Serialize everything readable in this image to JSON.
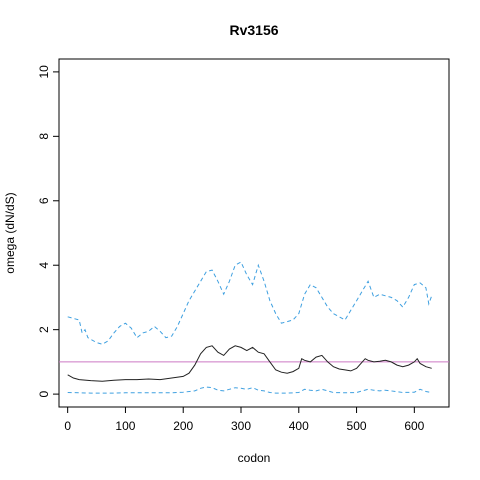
{
  "chart_data": {
    "type": "line",
    "title": "Rv3156",
    "xlabel": "codon",
    "ylabel": "omega (dN/dS)",
    "xlim": [
      -15,
      660
    ],
    "ylim": [
      -0.4,
      10.4
    ],
    "xticks": [
      0,
      100,
      200,
      300,
      400,
      500,
      600
    ],
    "yticks": [
      0,
      2,
      4,
      6,
      8,
      10
    ],
    "grid": false,
    "legend": "none",
    "reference_line": {
      "y": 1,
      "color": "#cc79c4"
    },
    "series": [
      {
        "role": "estimate",
        "style": "solid",
        "color": "#222222",
        "x": [
          0,
          10,
          20,
          40,
          60,
          80,
          100,
          120,
          140,
          160,
          180,
          200,
          210,
          220,
          230,
          240,
          250,
          260,
          270,
          280,
          290,
          300,
          310,
          320,
          330,
          340,
          350,
          360,
          370,
          380,
          390,
          400,
          405,
          410,
          420,
          430,
          440,
          450,
          460,
          470,
          480,
          490,
          500,
          510,
          515,
          520,
          530,
          540,
          550,
          560,
          570,
          580,
          590,
          600,
          605,
          610,
          620,
          630
        ],
        "y": [
          0.6,
          0.5,
          0.45,
          0.42,
          0.4,
          0.43,
          0.45,
          0.45,
          0.47,
          0.45,
          0.5,
          0.55,
          0.65,
          0.9,
          1.25,
          1.45,
          1.5,
          1.3,
          1.2,
          1.4,
          1.5,
          1.45,
          1.35,
          1.45,
          1.3,
          1.25,
          1.0,
          0.75,
          0.68,
          0.65,
          0.7,
          0.8,
          1.1,
          1.05,
          1.0,
          1.15,
          1.2,
          1.0,
          0.85,
          0.78,
          0.75,
          0.72,
          0.8,
          1.0,
          1.1,
          1.05,
          1.0,
          1.02,
          1.05,
          1.0,
          0.9,
          0.85,
          0.9,
          1.0,
          1.1,
          0.95,
          0.85,
          0.8
        ]
      },
      {
        "role": "upper bound",
        "style": "dashed",
        "color": "#3fa0e0",
        "x": [
          0,
          10,
          20,
          25,
          30,
          35,
          40,
          50,
          60,
          70,
          80,
          90,
          100,
          110,
          120,
          130,
          140,
          150,
          160,
          170,
          180,
          190,
          200,
          210,
          220,
          230,
          240,
          250,
          260,
          270,
          280,
          290,
          300,
          310,
          320,
          330,
          340,
          350,
          360,
          370,
          380,
          390,
          400,
          410,
          420,
          430,
          440,
          450,
          460,
          470,
          480,
          490,
          500,
          510,
          520,
          530,
          540,
          550,
          560,
          570,
          580,
          590,
          600,
          610,
          620,
          625,
          630
        ],
        "y": [
          2.4,
          2.35,
          2.3,
          1.9,
          2.0,
          1.75,
          1.7,
          1.6,
          1.55,
          1.65,
          1.9,
          2.1,
          2.2,
          2.05,
          1.75,
          1.9,
          1.95,
          2.1,
          1.95,
          1.75,
          1.8,
          2.1,
          2.5,
          2.9,
          3.2,
          3.5,
          3.8,
          3.85,
          3.5,
          3.1,
          3.5,
          4.0,
          4.1,
          3.7,
          3.4,
          4.0,
          3.5,
          2.9,
          2.5,
          2.2,
          2.25,
          2.3,
          2.5,
          3.1,
          3.4,
          3.3,
          3.0,
          2.7,
          2.5,
          2.4,
          2.3,
          2.6,
          2.9,
          3.2,
          3.5,
          3.0,
          3.1,
          3.05,
          3.0,
          2.9,
          2.7,
          3.0,
          3.4,
          3.45,
          3.3,
          2.8,
          3.05
        ]
      },
      {
        "role": "lower bound",
        "style": "dashed",
        "color": "#3fa0e0",
        "x": [
          0,
          20,
          40,
          60,
          80,
          100,
          120,
          140,
          160,
          180,
          200,
          220,
          230,
          240,
          250,
          260,
          270,
          280,
          290,
          300,
          310,
          320,
          330,
          340,
          350,
          360,
          380,
          400,
          410,
          420,
          430,
          440,
          450,
          460,
          480,
          500,
          510,
          520,
          530,
          540,
          550,
          560,
          580,
          600,
          610,
          620,
          630
        ],
        "y": [
          0.05,
          0.04,
          0.03,
          0.03,
          0.03,
          0.04,
          0.04,
          0.04,
          0.04,
          0.04,
          0.06,
          0.1,
          0.18,
          0.22,
          0.2,
          0.12,
          0.1,
          0.15,
          0.2,
          0.18,
          0.15,
          0.2,
          0.12,
          0.1,
          0.05,
          0.03,
          0.03,
          0.05,
          0.15,
          0.12,
          0.1,
          0.15,
          0.1,
          0.05,
          0.04,
          0.05,
          0.1,
          0.15,
          0.12,
          0.1,
          0.12,
          0.1,
          0.05,
          0.06,
          0.15,
          0.08,
          0.05
        ]
      }
    ]
  }
}
